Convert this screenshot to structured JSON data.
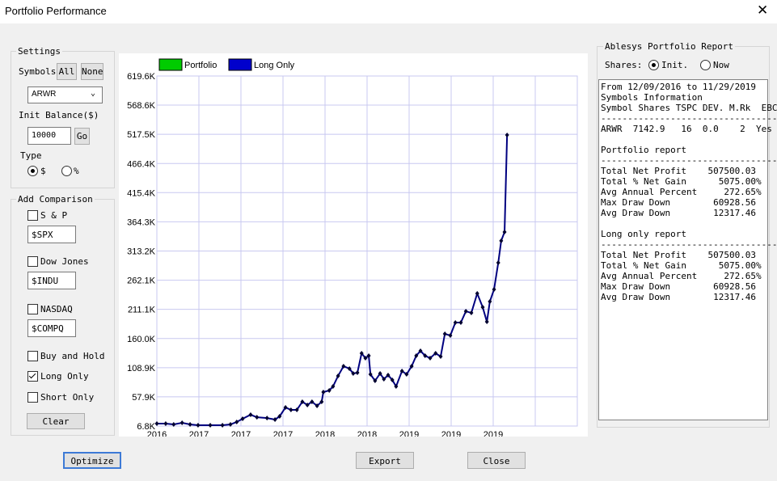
{
  "window": {
    "title": "Portfolio Performance"
  },
  "settings": {
    "legend": "Settings",
    "symbols_label": "Symbols",
    "all": "All",
    "none": "None",
    "symbol": "ARWR",
    "init_balance_label": "Init Balance($)",
    "init_balance": "10000",
    "go": "Go",
    "type_label": "Type",
    "type_options": [
      {
        "label": "$",
        "checked": true
      },
      {
        "label": "%",
        "checked": false
      }
    ]
  },
  "comparison": {
    "legend": "Add Comparison",
    "indexes": [
      {
        "label": "S & P",
        "symbol": "$SPX",
        "checked": false
      },
      {
        "label": "Dow Jones",
        "symbol": "$INDU",
        "checked": false
      },
      {
        "label": "NASDAQ",
        "symbol": "$COMPQ",
        "checked": false
      }
    ],
    "options": [
      {
        "label": "Buy and Hold",
        "checked": false
      },
      {
        "label": "Long Only",
        "checked": true
      },
      {
        "label": "Short Only",
        "checked": false
      }
    ],
    "clear": "Clear"
  },
  "buttons": {
    "optimize": "Optimize",
    "export": "Export",
    "close": "Close"
  },
  "report": {
    "title": "Ablesys Portfolio Report",
    "shares_label": "Shares:",
    "share_options": [
      {
        "label": "Init.",
        "checked": true
      },
      {
        "label": "Now",
        "checked": false
      }
    ],
    "blocks": [
      [
        "From 12/09/2016 to 11/29/2019",
        "Symbols Information",
        "Symbol Shares TSPC DEV. M.Rk  EBC",
        "-----------------------------------",
        "ARWR  7142.9   16  0.0    2  Yes"
      ],
      [
        "Portfolio report",
        "-----------------------------------",
        "Total Net Profit    507500.03",
        "Total % Net Gain      5075.00%",
        "Avg Annual Percent     272.65%",
        "Max Draw Down        60928.56",
        "Avg Draw Down        12317.46"
      ],
      [
        "Long only report",
        "-----------------------------------",
        "Total Net Profit    507500.03",
        "Total % Net Gain      5075.00%",
        "Avg Annual Percent     272.65%",
        "Max Draw Down        60928.56",
        "Avg Draw Down        12317.46"
      ]
    ]
  },
  "chart_data": {
    "type": "line",
    "legend": [
      {
        "name": "Portfolio",
        "color": "#00cc00"
      },
      {
        "name": "Long Only",
        "color": "#0000cc"
      }
    ],
    "series": [
      {
        "name": "Long Only",
        "color": "#000080",
        "x": [
          0,
          0.21,
          0.4,
          0.6,
          0.79,
          0.98,
          1.27,
          1.56,
          1.75,
          1.9,
          2.04,
          2.23,
          2.38,
          2.62,
          2.81,
          2.92,
          3.06,
          3.19,
          3.33,
          3.46,
          3.58,
          3.69,
          3.81,
          3.92,
          3.96,
          4.1,
          4.19,
          4.31,
          4.44,
          4.58,
          4.67,
          4.77,
          4.87,
          4.96,
          5.04,
          5.08,
          5.19,
          5.31,
          5.4,
          5.5,
          5.6,
          5.69,
          5.83,
          5.94,
          6.06,
          6.17,
          6.27,
          6.38,
          6.5,
          6.63,
          6.75,
          6.85,
          6.98,
          7.1,
          7.23,
          7.35,
          7.48,
          7.62,
          7.75,
          7.85,
          7.92,
          8.02,
          8.12,
          8.19,
          8.27,
          8.33
        ],
        "values": [
          11000,
          11000,
          9600,
          12500,
          9600,
          8200,
          8200,
          8200,
          9600,
          13900,
          19500,
          26600,
          22200,
          20800,
          18100,
          23800,
          39300,
          35100,
          35100,
          49300,
          43600,
          49300,
          42200,
          49300,
          66200,
          69100,
          76100,
          94500,
          111500,
          107300,
          98800,
          100200,
          134100,
          125700,
          129900,
          97400,
          86000,
          98800,
          88900,
          95900,
          87500,
          76100,
          103000,
          97400,
          111500,
          129900,
          138400,
          129900,
          125700,
          134100,
          128500,
          168100,
          165300,
          187900,
          187900,
          207700,
          204900,
          238900,
          214800,
          189300,
          224700,
          245900,
          292600,
          331000,
          346500,
          516200
        ]
      }
    ],
    "xlim": [
      0,
      10
    ],
    "xticks": [
      {
        "value": 0,
        "label": "2016"
      },
      {
        "value": 1,
        "label": "2017"
      },
      {
        "value": 2,
        "label": "2017"
      },
      {
        "value": 3,
        "label": "2017"
      },
      {
        "value": 4,
        "label": "2018"
      },
      {
        "value": 5,
        "label": "2018"
      },
      {
        "value": 6,
        "label": "2019"
      },
      {
        "value": 7,
        "label": "2019"
      },
      {
        "value": 8,
        "label": "2019"
      },
      {
        "value": 9,
        "label": null
      },
      {
        "value": 10,
        "label": null
      }
    ],
    "ylim": [
      6800,
      619600
    ],
    "yticks": [
      {
        "value": 6800,
        "label": "6.8K"
      },
      {
        "value": 57900,
        "label": "57.9K"
      },
      {
        "value": 108900,
        "label": "108.9K"
      },
      {
        "value": 160000,
        "label": "160.0K"
      },
      {
        "value": 211100,
        "label": "211.1K"
      },
      {
        "value": 262100,
        "label": "262.1K"
      },
      {
        "value": 313200,
        "label": "313.2K"
      },
      {
        "value": 364300,
        "label": "364.3K"
      },
      {
        "value": 415400,
        "label": "415.4K"
      },
      {
        "value": 466400,
        "label": "466.4K"
      },
      {
        "value": 517500,
        "label": "517.5K"
      },
      {
        "value": 568600,
        "label": "568.6K"
      },
      {
        "value": 619600,
        "label": "619.6K"
      }
    ],
    "grid": true,
    "grid_color": "#c8c8f0"
  }
}
